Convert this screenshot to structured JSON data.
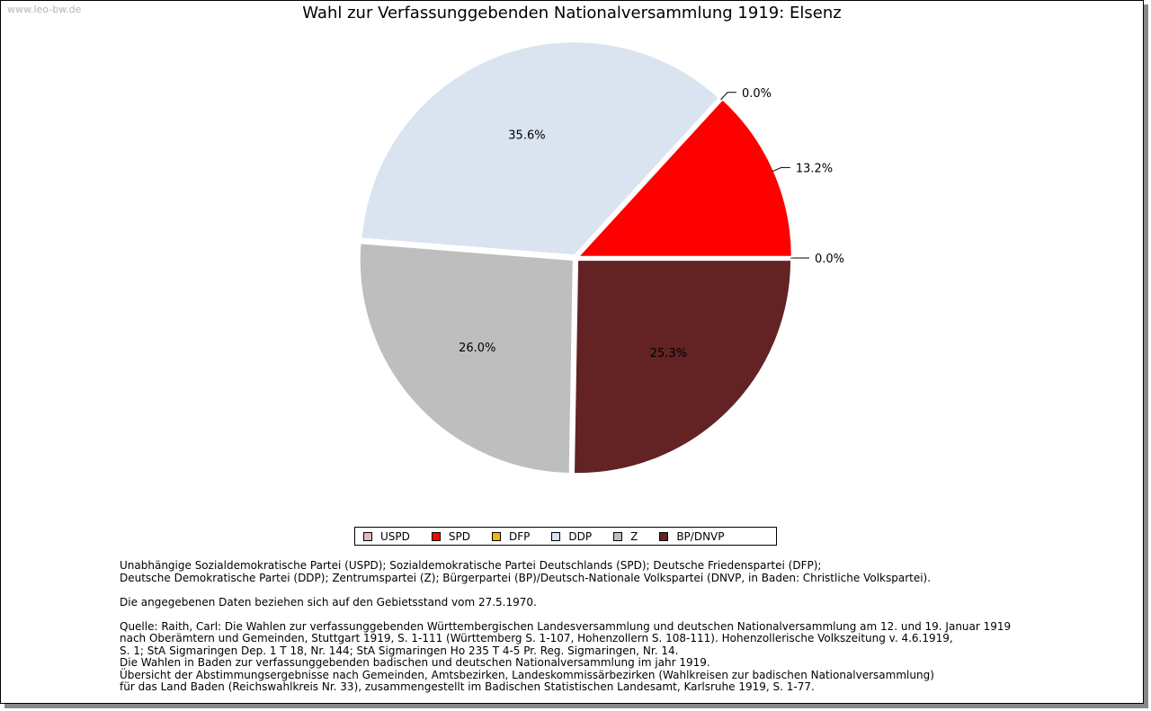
{
  "watermark": "www.leo-bw.de",
  "chart_data": {
    "type": "pie",
    "title": "Wahl zur Verfassunggebenden Nationalversammlung 1919: Elsenz",
    "slices": [
      {
        "name": "USPD",
        "value": 0.0,
        "label": "0.0%",
        "color": "#e8b8b8"
      },
      {
        "name": "SPD",
        "value": 13.2,
        "label": "13.2%",
        "color": "#ff0000"
      },
      {
        "name": "DFP",
        "value": 0.0,
        "label": "0.0%",
        "color": "#f0b800"
      },
      {
        "name": "DDP",
        "value": 35.6,
        "label": "35.6%",
        "color": "#dae3f0"
      },
      {
        "name": "Z",
        "value": 26.0,
        "label": "26.0%",
        "color": "#bebebe"
      },
      {
        "name": "BP/DNVP",
        "value": 25.3,
        "label": "25.3%",
        "color": "#632325"
      }
    ],
    "legend_position": "bottom"
  },
  "notes": {
    "parties": [
      "Unabhängige Sozialdemokratische Partei (USPD); Sozialdemokratische Partei Deutschlands (SPD); Deutsche Friedenspartei (DFP);",
      "Deutsche Demokratische Partei (DDP); Zentrumspartei (Z); Bürgerpartei (BP)/Deutsch-Nationale Volkspartei (DNVP, in Baden: Christliche Volkspartei)."
    ],
    "territory": "Die angegebenen Daten beziehen sich auf den Gebietsstand vom 27.5.1970.",
    "source": [
      "Quelle: Raith, Carl: Die Wahlen zur verfassunggebenden Württembergischen Landesversammlung und deutschen Nationalversammlung am 12. und 19. Januar 1919",
      "nach Oberämtern und Gemeinden, Stuttgart 1919, S. 1-111 (Württemberg S. 1-107, Hohenzollern S. 108-111). Hohenzollerische Volkszeitung v. 4.6.1919,",
      "S. 1; StA Sigmaringen Dep. 1 T 18, Nr. 144; StA Sigmaringen Ho 235 T 4-5 Pr. Reg. Sigmaringen, Nr. 14.",
      "Die Wahlen in Baden zur verfassunggebenden badischen und deutschen Nationalversammlung im jahr 1919.",
      "Übersicht der Abstimmungsergebnisse nach Gemeinden, Amtsbezirken, Landeskommissärbezirken (Wahlkreisen zur badischen Nationalversammlung)",
      "für das Land Baden (Reichswahlkreis Nr. 33), zusammengestellt im Badischen Statistischen Landesamt, Karlsruhe 1919, S. 1-77."
    ]
  }
}
